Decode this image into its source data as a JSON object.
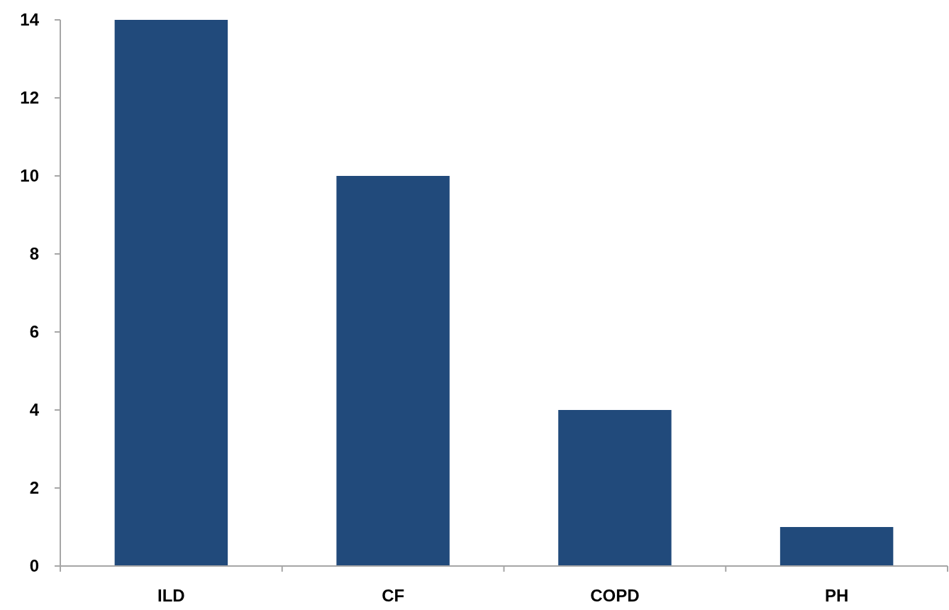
{
  "chart_data": {
    "type": "bar",
    "categories": [
      "ILD",
      "CF",
      "COPD",
      "PH"
    ],
    "values": [
      14,
      10,
      4,
      1
    ],
    "color": "#214a7b",
    "ylim": [
      0,
      14
    ],
    "yticks": [
      0,
      2,
      4,
      6,
      8,
      10,
      12,
      14
    ],
    "grid": false
  }
}
